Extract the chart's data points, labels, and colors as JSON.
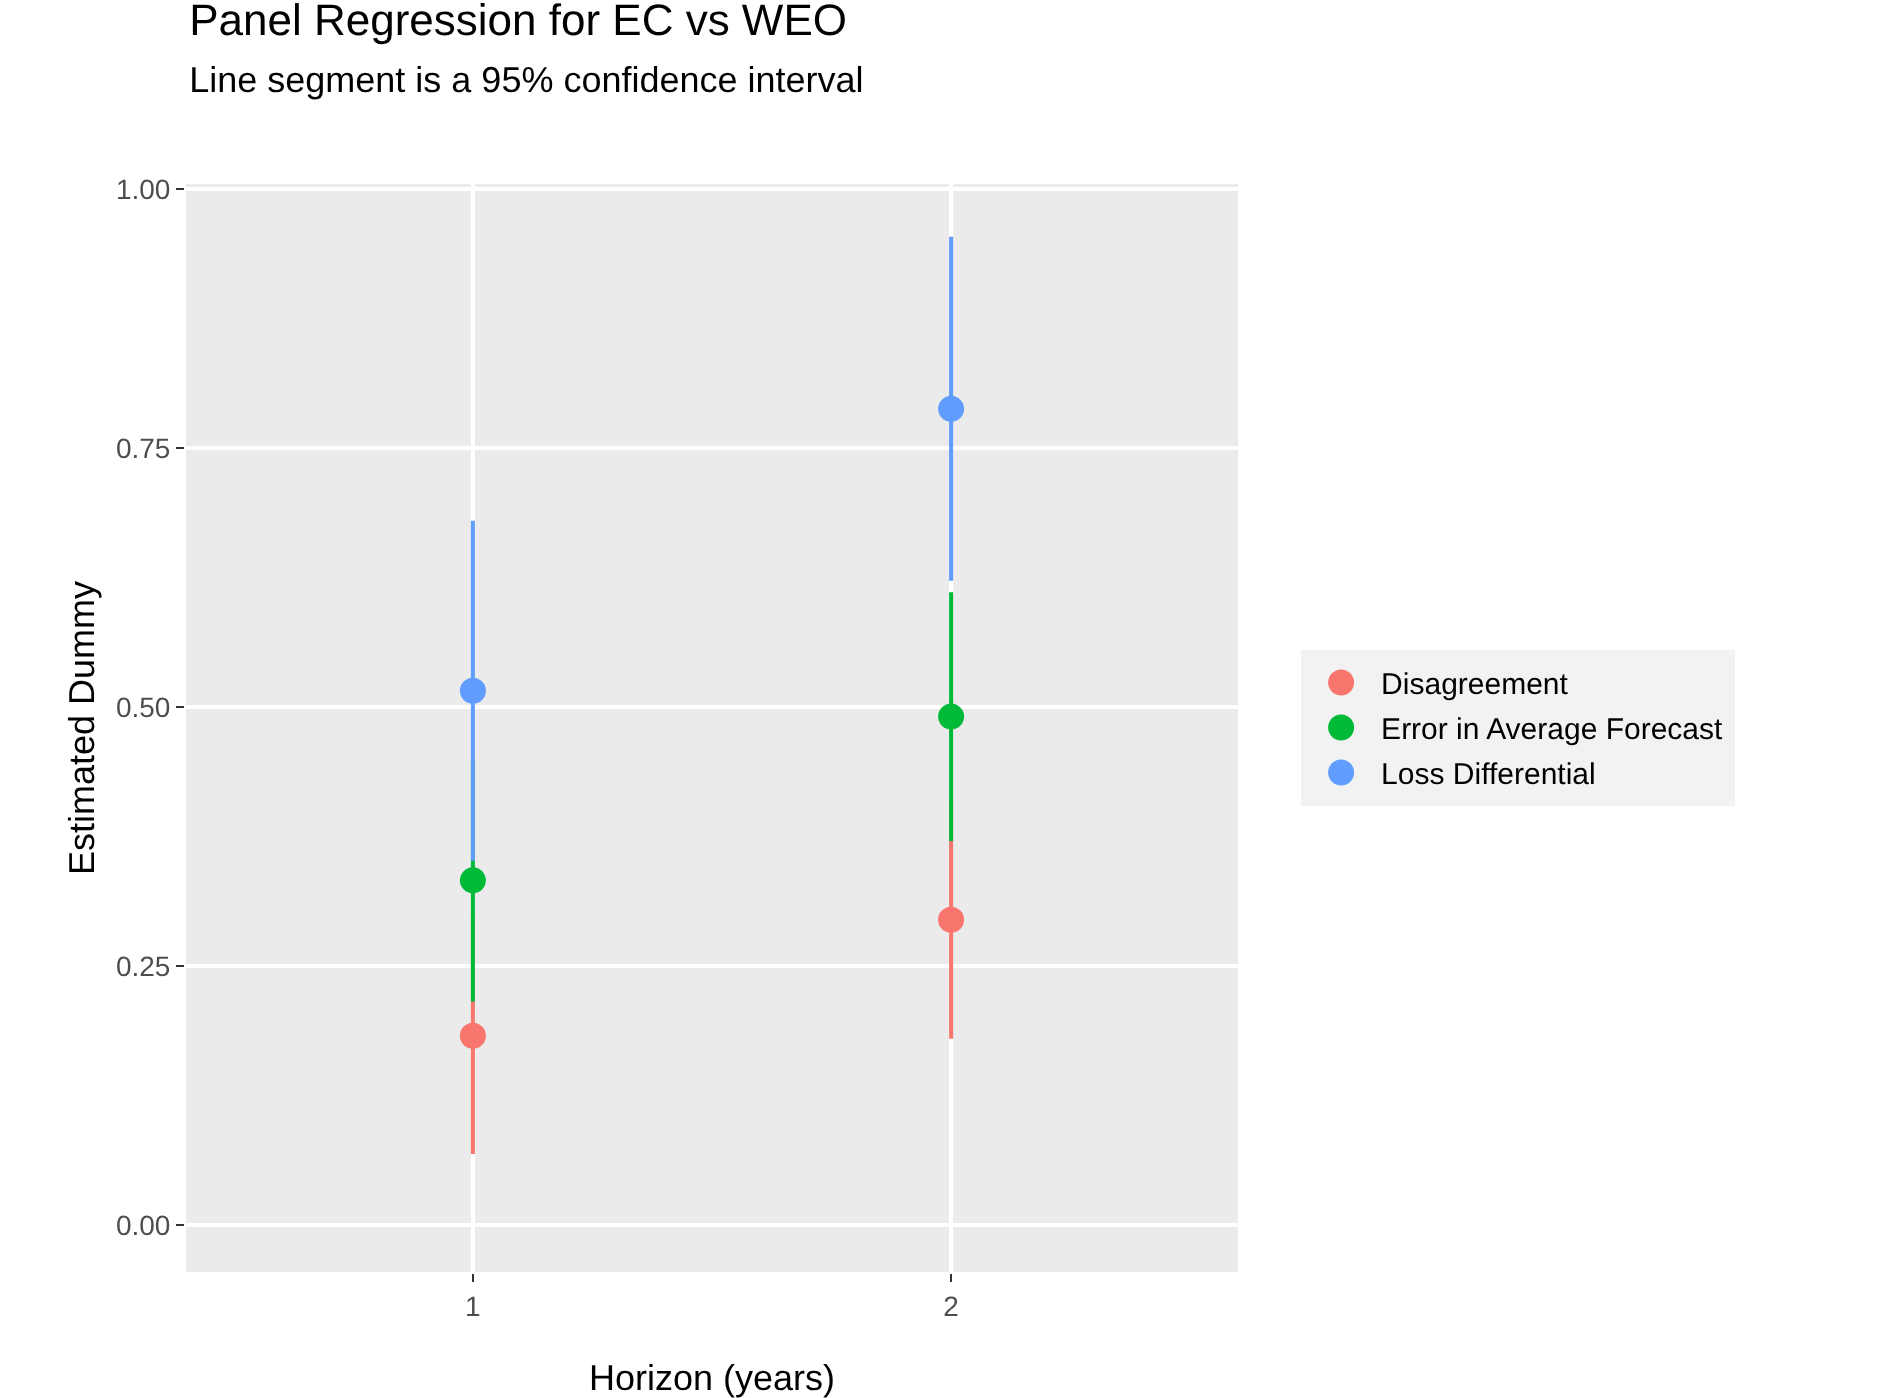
{
  "chart_data": {
    "type": "scatter",
    "title": "Panel Regression for EC vs WEO",
    "subtitle": "Line segment is a 95% confidence interval",
    "xlabel": "Horizon (years)",
    "ylabel": "Estimated Dummy",
    "categories": [
      "1",
      "2"
    ],
    "series": [
      {
        "name": "Disagreement",
        "color": "#f8766d",
        "values": [
          0.183,
          0.295
        ],
        "errors": [
          0.114,
          0.115
        ]
      },
      {
        "name": "Error in Average Forecast",
        "color": "#00ba38",
        "values": [
          0.333,
          0.491
        ],
        "errors": [
          0.117,
          0.12
        ]
      },
      {
        "name": "Loss Differential",
        "color": "#619cff",
        "values": [
          0.516,
          0.788
        ],
        "errors": [
          0.164,
          0.166
        ]
      }
    ],
    "ylim": [
      -0.045,
      1.005
    ],
    "yticks": [
      {
        "value": 0,
        "label": "0.00"
      },
      {
        "value": 0.25,
        "label": "0.25"
      },
      {
        "value": 0.5,
        "label": "0.50"
      },
      {
        "value": 0.75,
        "label": "0.75"
      },
      {
        "value": 1,
        "label": "1.00"
      }
    ],
    "grid": true,
    "legend": "right",
    "marker": "circle"
  }
}
